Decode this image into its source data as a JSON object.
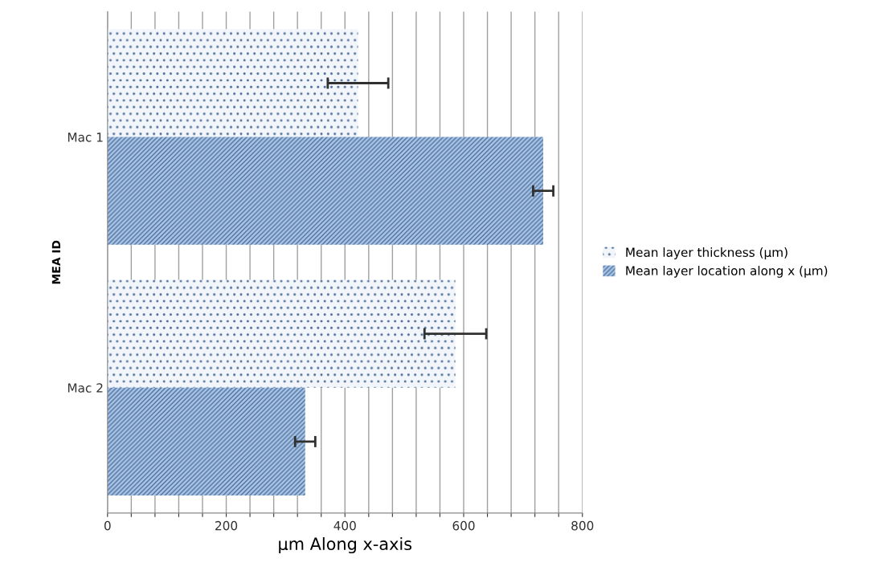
{
  "chart_data": {
    "type": "bar",
    "orientation": "horizontal",
    "ylabel": "MEA ID",
    "xlabel": "µm Along x-axis",
    "categories": [
      "Mac 1",
      "Mac 2"
    ],
    "series": [
      {
        "name": "Mean layer thickness (µm)",
        "color": "#f2f6fb",
        "values": [
          422,
          586
        ],
        "errors": [
          51,
          52
        ]
      },
      {
        "name": "Mean layer location along x (µm)",
        "color": "#a9c6e8",
        "values": [
          734,
          333
        ],
        "errors": [
          17,
          17
        ]
      }
    ],
    "xlim": [
      0,
      800
    ],
    "xticks": [
      0,
      {
        "value": 40,
        "label": null
      },
      {
        "value": 80,
        "label": null
      },
      {
        "value": 120,
        "label": null
      },
      {
        "value": 160,
        "label": null
      },
      200,
      {
        "value": 240,
        "label": null
      },
      {
        "value": 280,
        "label": null
      },
      {
        "value": 320,
        "label": null
      },
      {
        "value": 360,
        "label": null
      },
      400,
      {
        "value": 440,
        "label": null
      },
      {
        "value": 480,
        "label": null
      },
      {
        "value": 520,
        "label": null
      },
      {
        "value": 560,
        "label": null
      },
      600,
      {
        "value": 640,
        "label": null
      },
      {
        "value": 680,
        "label": null
      },
      {
        "value": 720,
        "label": null
      },
      {
        "value": 760,
        "label": null
      },
      800
    ],
    "grid": "x",
    "legend": "right"
  }
}
